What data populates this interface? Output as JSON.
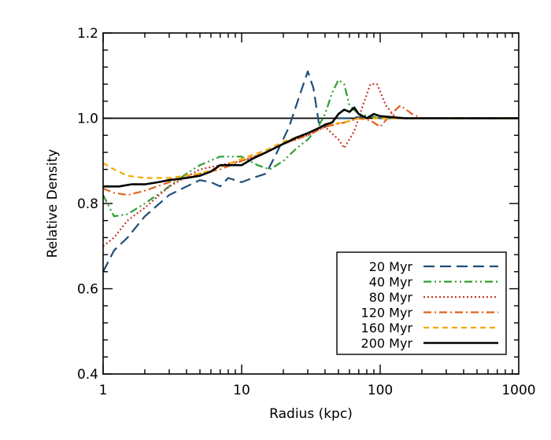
{
  "chart_data": {
    "type": "line",
    "title": "",
    "xlabel": "Radius (kpc)",
    "ylabel": "Relative Density",
    "xscale": "log",
    "xlim": [
      1,
      1000
    ],
    "ylim": [
      0.4,
      1.2
    ],
    "x_ticks": [
      {
        "value": 1,
        "label": "1"
      },
      {
        "value": 10,
        "label": "10"
      },
      {
        "value": 100,
        "label": "100"
      },
      {
        "value": 1000,
        "label": "1000"
      }
    ],
    "y_ticks": [
      {
        "value": 0.4,
        "label": "0.4"
      },
      {
        "value": 0.6,
        "label": "0.6"
      },
      {
        "value": 0.8,
        "label": "0.8"
      },
      {
        "value": 1.0,
        "label": "1.0"
      },
      {
        "value": 1.2,
        "label": "1.2"
      }
    ],
    "reference_line": {
      "y": 1.0,
      "color": "#000000"
    },
    "legend": {
      "position": "bottom-right"
    },
    "series": [
      {
        "name": "20 Myr",
        "color": "#1f4e79",
        "dash": "dashed",
        "points": [
          [
            1,
            0.64
          ],
          [
            1.2,
            0.69
          ],
          [
            1.5,
            0.72
          ],
          [
            2,
            0.77
          ],
          [
            3,
            0.82
          ],
          [
            4,
            0.84
          ],
          [
            5,
            0.855
          ],
          [
            6,
            0.85
          ],
          [
            7,
            0.84
          ],
          [
            8,
            0.86
          ],
          [
            10,
            0.85
          ],
          [
            12,
            0.86
          ],
          [
            15,
            0.87
          ],
          [
            18,
            0.92
          ],
          [
            22,
            0.98
          ],
          [
            26,
            1.05
          ],
          [
            30,
            1.11
          ],
          [
            33,
            1.07
          ],
          [
            36,
            0.99
          ],
          [
            40,
            0.98
          ],
          [
            50,
            1.0
          ],
          [
            60,
            1.0
          ],
          [
            80,
            1.005
          ],
          [
            100,
            1.0
          ],
          [
            150,
            1.0
          ],
          [
            200,
            1.0
          ],
          [
            300,
            1.0
          ],
          [
            500,
            1.0
          ],
          [
            1000,
            1.0
          ]
        ]
      },
      {
        "name": "40 Myr",
        "color": "#2e9e2e",
        "dash": "dash-dot-dot",
        "points": [
          [
            1,
            0.82
          ],
          [
            1.2,
            0.77
          ],
          [
            1.5,
            0.775
          ],
          [
            2,
            0.8
          ],
          [
            3,
            0.84
          ],
          [
            4,
            0.87
          ],
          [
            5,
            0.89
          ],
          [
            7,
            0.91
          ],
          [
            10,
            0.91
          ],
          [
            13,
            0.89
          ],
          [
            16,
            0.88
          ],
          [
            20,
            0.9
          ],
          [
            25,
            0.93
          ],
          [
            30,
            0.95
          ],
          [
            35,
            0.975
          ],
          [
            40,
            1.01
          ],
          [
            45,
            1.06
          ],
          [
            50,
            1.09
          ],
          [
            55,
            1.08
          ],
          [
            60,
            1.03
          ],
          [
            70,
            1.01
          ],
          [
            100,
            1.0
          ],
          [
            150,
            1.0
          ],
          [
            200,
            1.0
          ],
          [
            300,
            1.0
          ],
          [
            500,
            1.0
          ],
          [
            1000,
            1.0
          ]
        ]
      },
      {
        "name": "80 Myr",
        "color": "#c0392b",
        "dash": "dotted",
        "points": [
          [
            1,
            0.7
          ],
          [
            1.2,
            0.72
          ],
          [
            1.5,
            0.76
          ],
          [
            2,
            0.79
          ],
          [
            3,
            0.84
          ],
          [
            5,
            0.88
          ],
          [
            7,
            0.89
          ],
          [
            10,
            0.9
          ],
          [
            15,
            0.92
          ],
          [
            20,
            0.94
          ],
          [
            30,
            0.96
          ],
          [
            40,
            0.98
          ],
          [
            50,
            0.95
          ],
          [
            55,
            0.93
          ],
          [
            65,
            0.97
          ],
          [
            75,
            1.03
          ],
          [
            85,
            1.08
          ],
          [
            95,
            1.08
          ],
          [
            110,
            1.03
          ],
          [
            130,
            1.0
          ],
          [
            150,
            1.0
          ],
          [
            200,
            1.0
          ],
          [
            300,
            1.0
          ],
          [
            500,
            1.0
          ],
          [
            1000,
            1.0
          ]
        ]
      },
      {
        "name": "120 Myr",
        "color": "#e0621a",
        "dash": "dash-dot",
        "points": [
          [
            1,
            0.835
          ],
          [
            1.2,
            0.825
          ],
          [
            1.5,
            0.82
          ],
          [
            2,
            0.83
          ],
          [
            3,
            0.85
          ],
          [
            5,
            0.87
          ],
          [
            7,
            0.88
          ],
          [
            10,
            0.9
          ],
          [
            15,
            0.92
          ],
          [
            20,
            0.94
          ],
          [
            30,
            0.96
          ],
          [
            40,
            0.98
          ],
          [
            55,
            0.99
          ],
          [
            70,
            1.0
          ],
          [
            85,
            0.995
          ],
          [
            100,
            0.98
          ],
          [
            120,
            1.01
          ],
          [
            140,
            1.03
          ],
          [
            170,
            1.01
          ],
          [
            200,
            1.0
          ],
          [
            300,
            1.0
          ],
          [
            500,
            1.0
          ],
          [
            1000,
            1.0
          ]
        ]
      },
      {
        "name": "160 Myr",
        "color": "#f2a900",
        "dash": "dashed-short",
        "points": [
          [
            1,
            0.895
          ],
          [
            1.2,
            0.88
          ],
          [
            1.5,
            0.865
          ],
          [
            2,
            0.86
          ],
          [
            3,
            0.86
          ],
          [
            5,
            0.87
          ],
          [
            7,
            0.885
          ],
          [
            10,
            0.905
          ],
          [
            15,
            0.925
          ],
          [
            20,
            0.945
          ],
          [
            30,
            0.965
          ],
          [
            40,
            0.985
          ],
          [
            55,
            0.99
          ],
          [
            70,
            1.0
          ],
          [
            100,
            1.0
          ],
          [
            150,
            1.0
          ],
          [
            200,
            1.0
          ],
          [
            300,
            1.0
          ],
          [
            500,
            1.0
          ],
          [
            1000,
            1.0
          ]
        ]
      },
      {
        "name": "200 Myr",
        "color": "#000000",
        "dash": "solid",
        "points": [
          [
            1,
            0.84
          ],
          [
            1.3,
            0.84
          ],
          [
            1.6,
            0.845
          ],
          [
            2,
            0.845
          ],
          [
            2.5,
            0.85
          ],
          [
            3,
            0.855
          ],
          [
            4,
            0.86
          ],
          [
            5,
            0.865
          ],
          [
            6,
            0.875
          ],
          [
            7,
            0.89
          ],
          [
            8,
            0.89
          ],
          [
            10,
            0.89
          ],
          [
            12,
            0.905
          ],
          [
            15,
            0.92
          ],
          [
            20,
            0.94
          ],
          [
            25,
            0.955
          ],
          [
            30,
            0.965
          ],
          [
            35,
            0.975
          ],
          [
            40,
            0.985
          ],
          [
            45,
            0.99
          ],
          [
            50,
            1.01
          ],
          [
            55,
            1.02
          ],
          [
            60,
            1.015
          ],
          [
            65,
            1.025
          ],
          [
            70,
            1.01
          ],
          [
            80,
            1.0
          ],
          [
            90,
            1.01
          ],
          [
            100,
            1.005
          ],
          [
            150,
            1.0
          ],
          [
            200,
            1.0
          ],
          [
            300,
            1.0
          ],
          [
            500,
            1.0
          ],
          [
            1000,
            1.0
          ]
        ]
      }
    ]
  }
}
